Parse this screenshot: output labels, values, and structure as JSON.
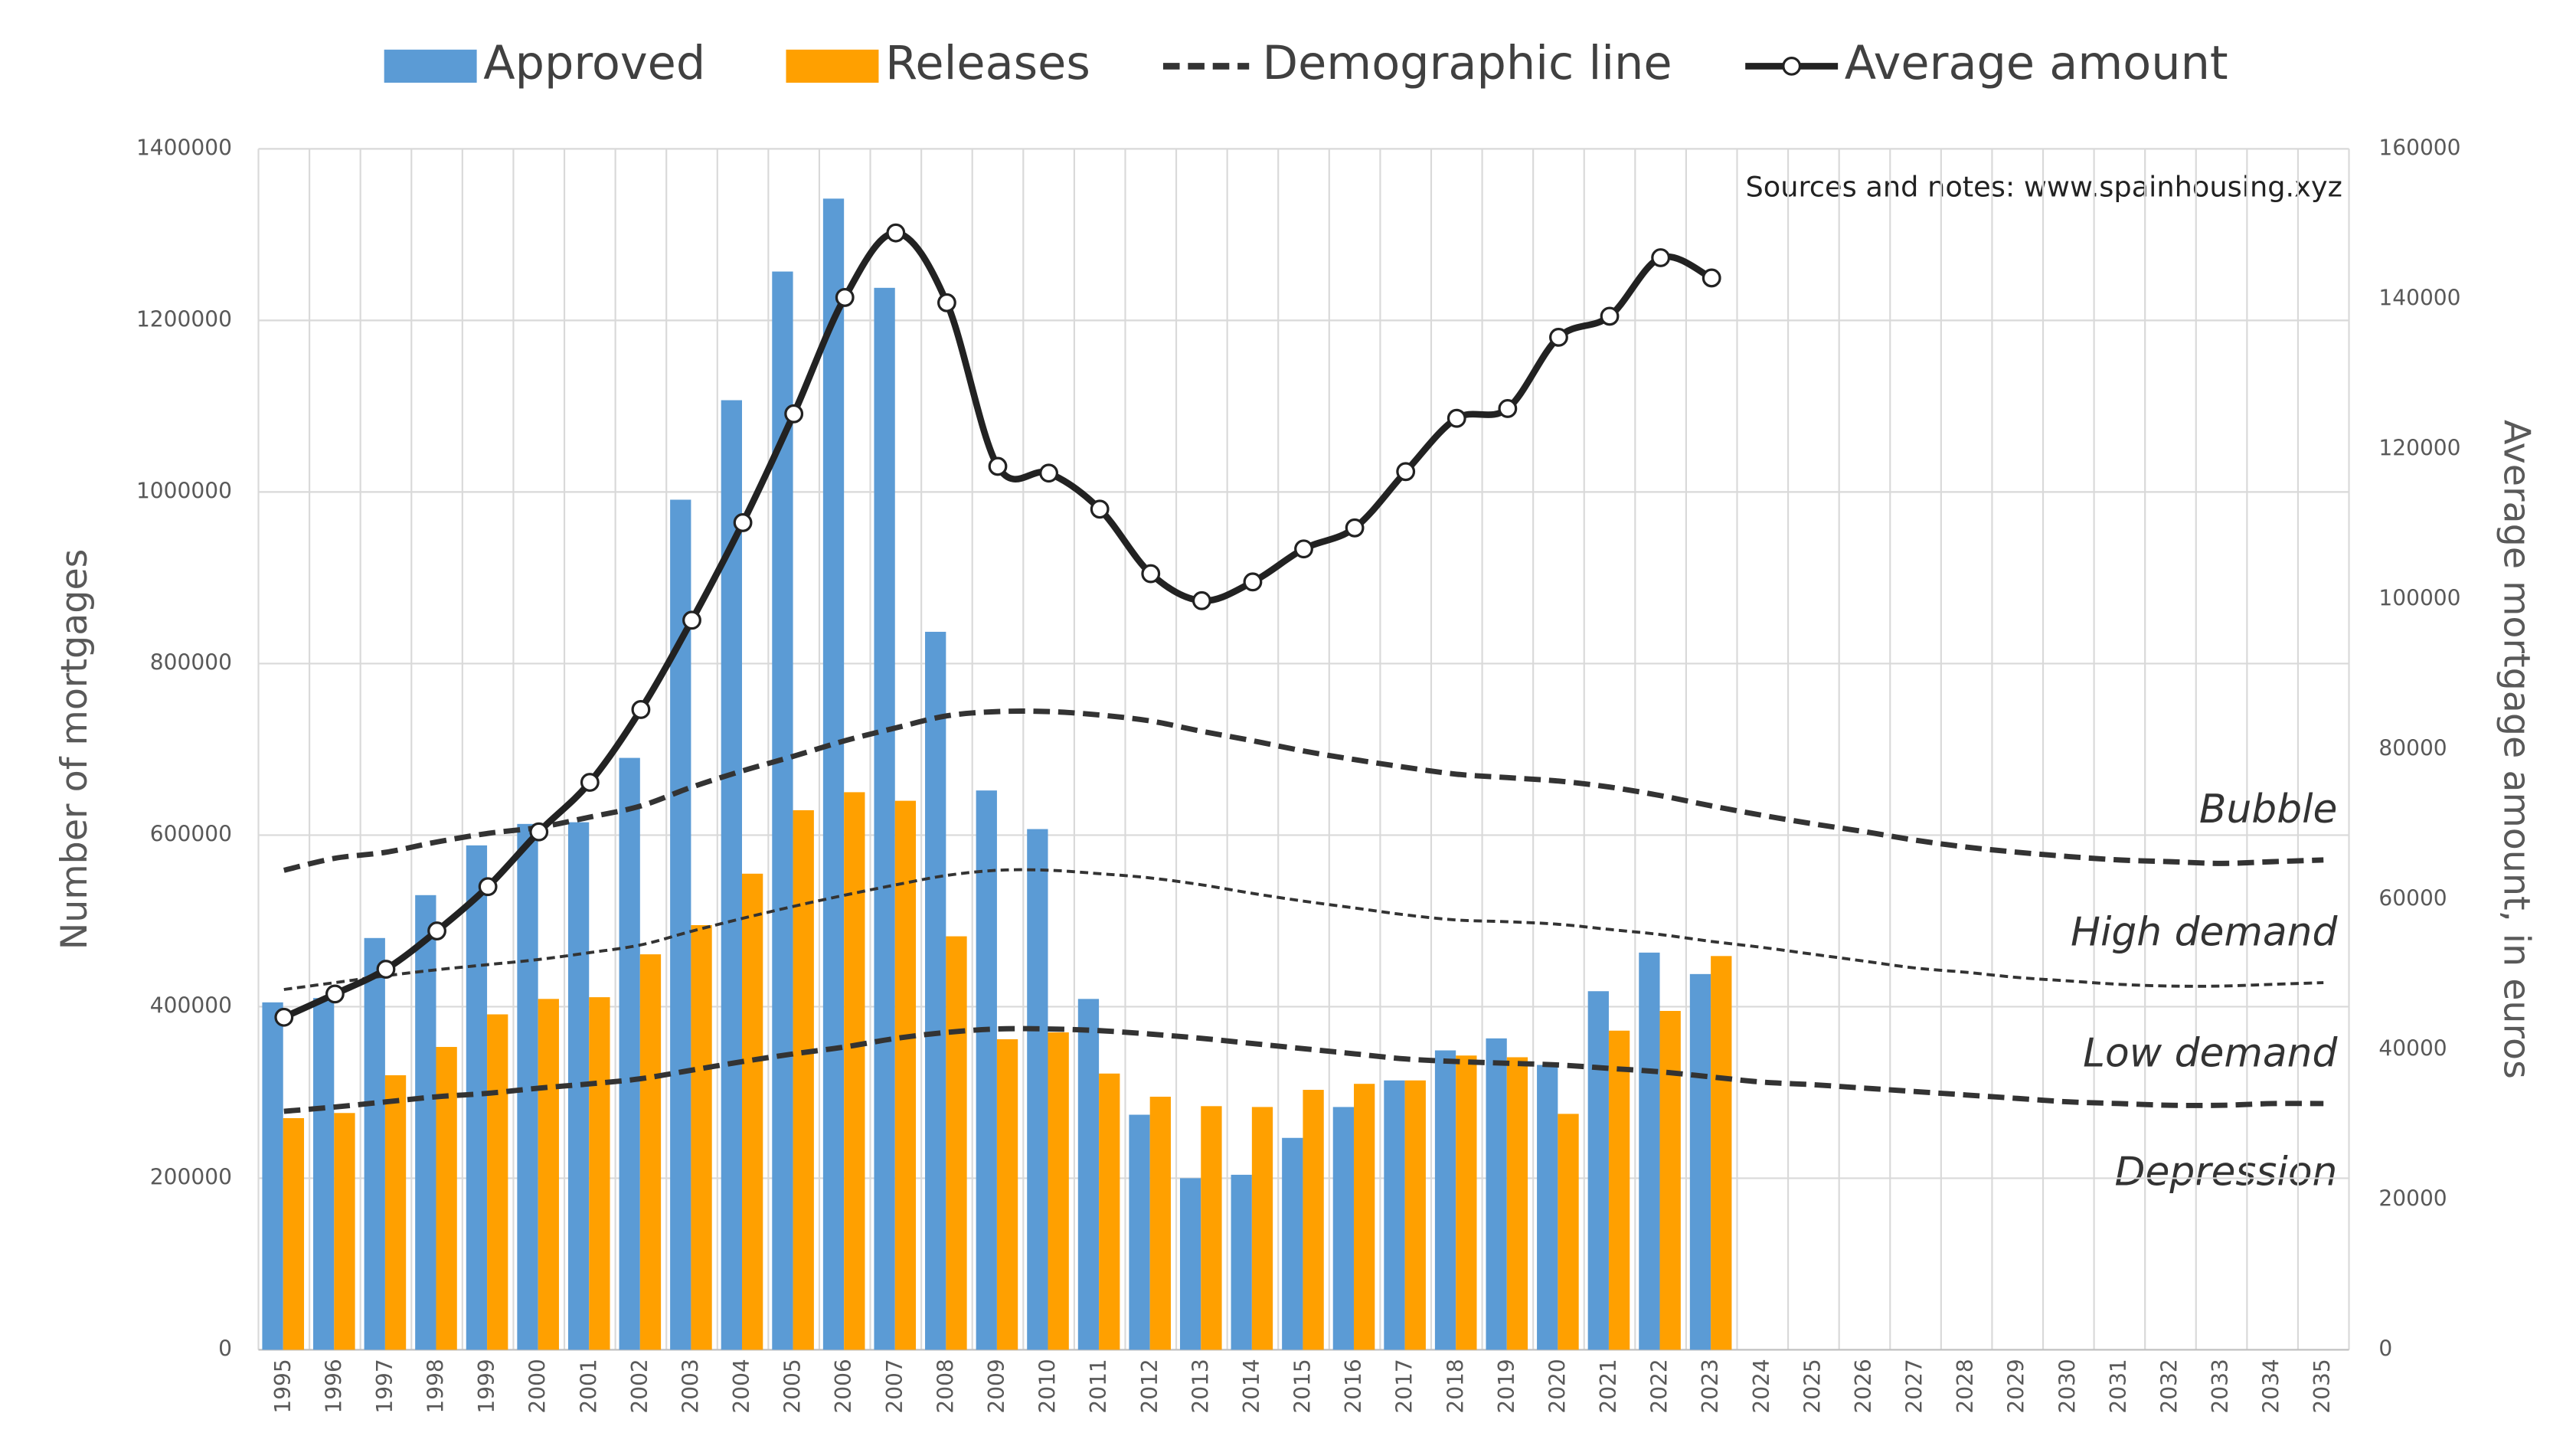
{
  "chart_data": {
    "type": "bar",
    "categories": [
      "1995",
      "1996",
      "1997",
      "1998",
      "1999",
      "2000",
      "2001",
      "2002",
      "2003",
      "2004",
      "2005",
      "2006",
      "2007",
      "2008",
      "2009",
      "2010",
      "2011",
      "2012",
      "2013",
      "2014",
      "2015",
      "2016",
      "2017",
      "2018",
      "2019",
      "2020",
      "2021",
      "2022",
      "2023",
      "2024",
      "2025",
      "2026",
      "2027",
      "2028",
      "2029",
      "2030",
      "2031",
      "2032",
      "2033",
      "2034",
      "2035"
    ],
    "y_label": "Number of mortgages",
    "y2_label": "Average mortgage amount, in euros",
    "ylim": [
      0,
      1400000
    ],
    "yticks": [
      0,
      200000,
      400000,
      600000,
      800000,
      1000000,
      1200000,
      1400000
    ],
    "y2lim": [
      0,
      160000
    ],
    "y2ticks": [
      0,
      20000,
      40000,
      60000,
      80000,
      100000,
      120000,
      140000,
      160000
    ],
    "grid": true,
    "annotations": [
      "Sources and notes: www.spainhousing.xyz",
      "Depression"
    ],
    "series": [
      {
        "name": "Approved",
        "type": "bar",
        "color": "#5b9bd5",
        "values": [
          405000,
          410000,
          480000,
          530000,
          588000,
          613000,
          615000,
          690000,
          991000,
          1107000,
          1257000,
          1342000,
          1238000,
          837000,
          652000,
          607000,
          409000,
          274000,
          200000,
          204000,
          247000,
          283000,
          314000,
          349000,
          363000,
          332000,
          418000,
          463000,
          438000,
          null,
          null,
          null,
          null,
          null,
          null,
          null,
          null,
          null,
          null,
          null,
          null
        ]
      },
      {
        "name": "Releases",
        "type": "bar",
        "color": "#ffa000",
        "values": [
          270000,
          276000,
          320000,
          353000,
          391000,
          409000,
          411000,
          461000,
          495000,
          555000,
          629000,
          650000,
          640000,
          482000,
          362000,
          370000,
          322000,
          295000,
          284000,
          283000,
          303000,
          310000,
          314000,
          343000,
          341000,
          275000,
          372000,
          395000,
          459000,
          null,
          null,
          null,
          null,
          null,
          null,
          null,
          null,
          null,
          null,
          null,
          null
        ]
      },
      {
        "name": "Demographic line",
        "type": "dashed",
        "color": "#333333",
        "lines": [
          {
            "label": "Bubble",
            "values": [
              559000,
              573000,
              580000,
              592000,
              602000,
              609000,
              621000,
              634000,
              656000,
              675000,
              692000,
              710000,
              725000,
              739000,
              744000,
              744000,
              740000,
              733000,
              721000,
              710000,
              698000,
              688000,
              679000,
              671000,
              667000,
              663000,
              656000,
              646000,
              634000,
              623000,
              613000,
              604000,
              594000,
              586000,
              580000,
              575000,
              571000,
              569000,
              567000,
              569000,
              571000
            ]
          },
          {
            "label": "High demand",
            "values": [
              420000,
              428000,
              436000,
              443000,
              449000,
              455000,
              463000,
              472000,
              488000,
              503000,
              517000,
              530000,
              542000,
              553000,
              559000,
              559000,
              555000,
              550000,
              542000,
              532000,
              523000,
              515000,
              507000,
              501000,
              499000,
              496000,
              490000,
              484000,
              476000,
              469000,
              461000,
              453000,
              445000,
              440000,
              434000,
              430000,
              426000,
              424000,
              424000,
              426000,
              428000
            ]
          },
          {
            "label": "Low demand",
            "values": [
              278000,
              283000,
              289000,
              295000,
              299000,
              305000,
              310000,
              316000,
              326000,
              336000,
              345000,
              353000,
              363000,
              370000,
              374000,
              374000,
              372000,
              368000,
              363000,
              357000,
              351000,
              345000,
              339000,
              336000,
              334000,
              332000,
              328000,
              324000,
              318000,
              312000,
              309000,
              305000,
              301000,
              297000,
              293000,
              289000,
              287000,
              285000,
              285000,
              287000,
              287000
            ]
          }
        ]
      },
      {
        "name": "Average amount",
        "type": "line",
        "axis": "y2",
        "color": "#222222",
        "values": [
          44300,
          47400,
          50700,
          55800,
          61700,
          69000,
          75600,
          85300,
          97200,
          110200,
          124700,
          140200,
          148800,
          139500,
          117700,
          116800,
          112000,
          103400,
          99800,
          102300,
          106700,
          109500,
          117000,
          124100,
          125400,
          134900,
          137700,
          145500,
          142800,
          null,
          null,
          null,
          null,
          null,
          null,
          null,
          null,
          null,
          null,
          null,
          null
        ]
      }
    ]
  }
}
